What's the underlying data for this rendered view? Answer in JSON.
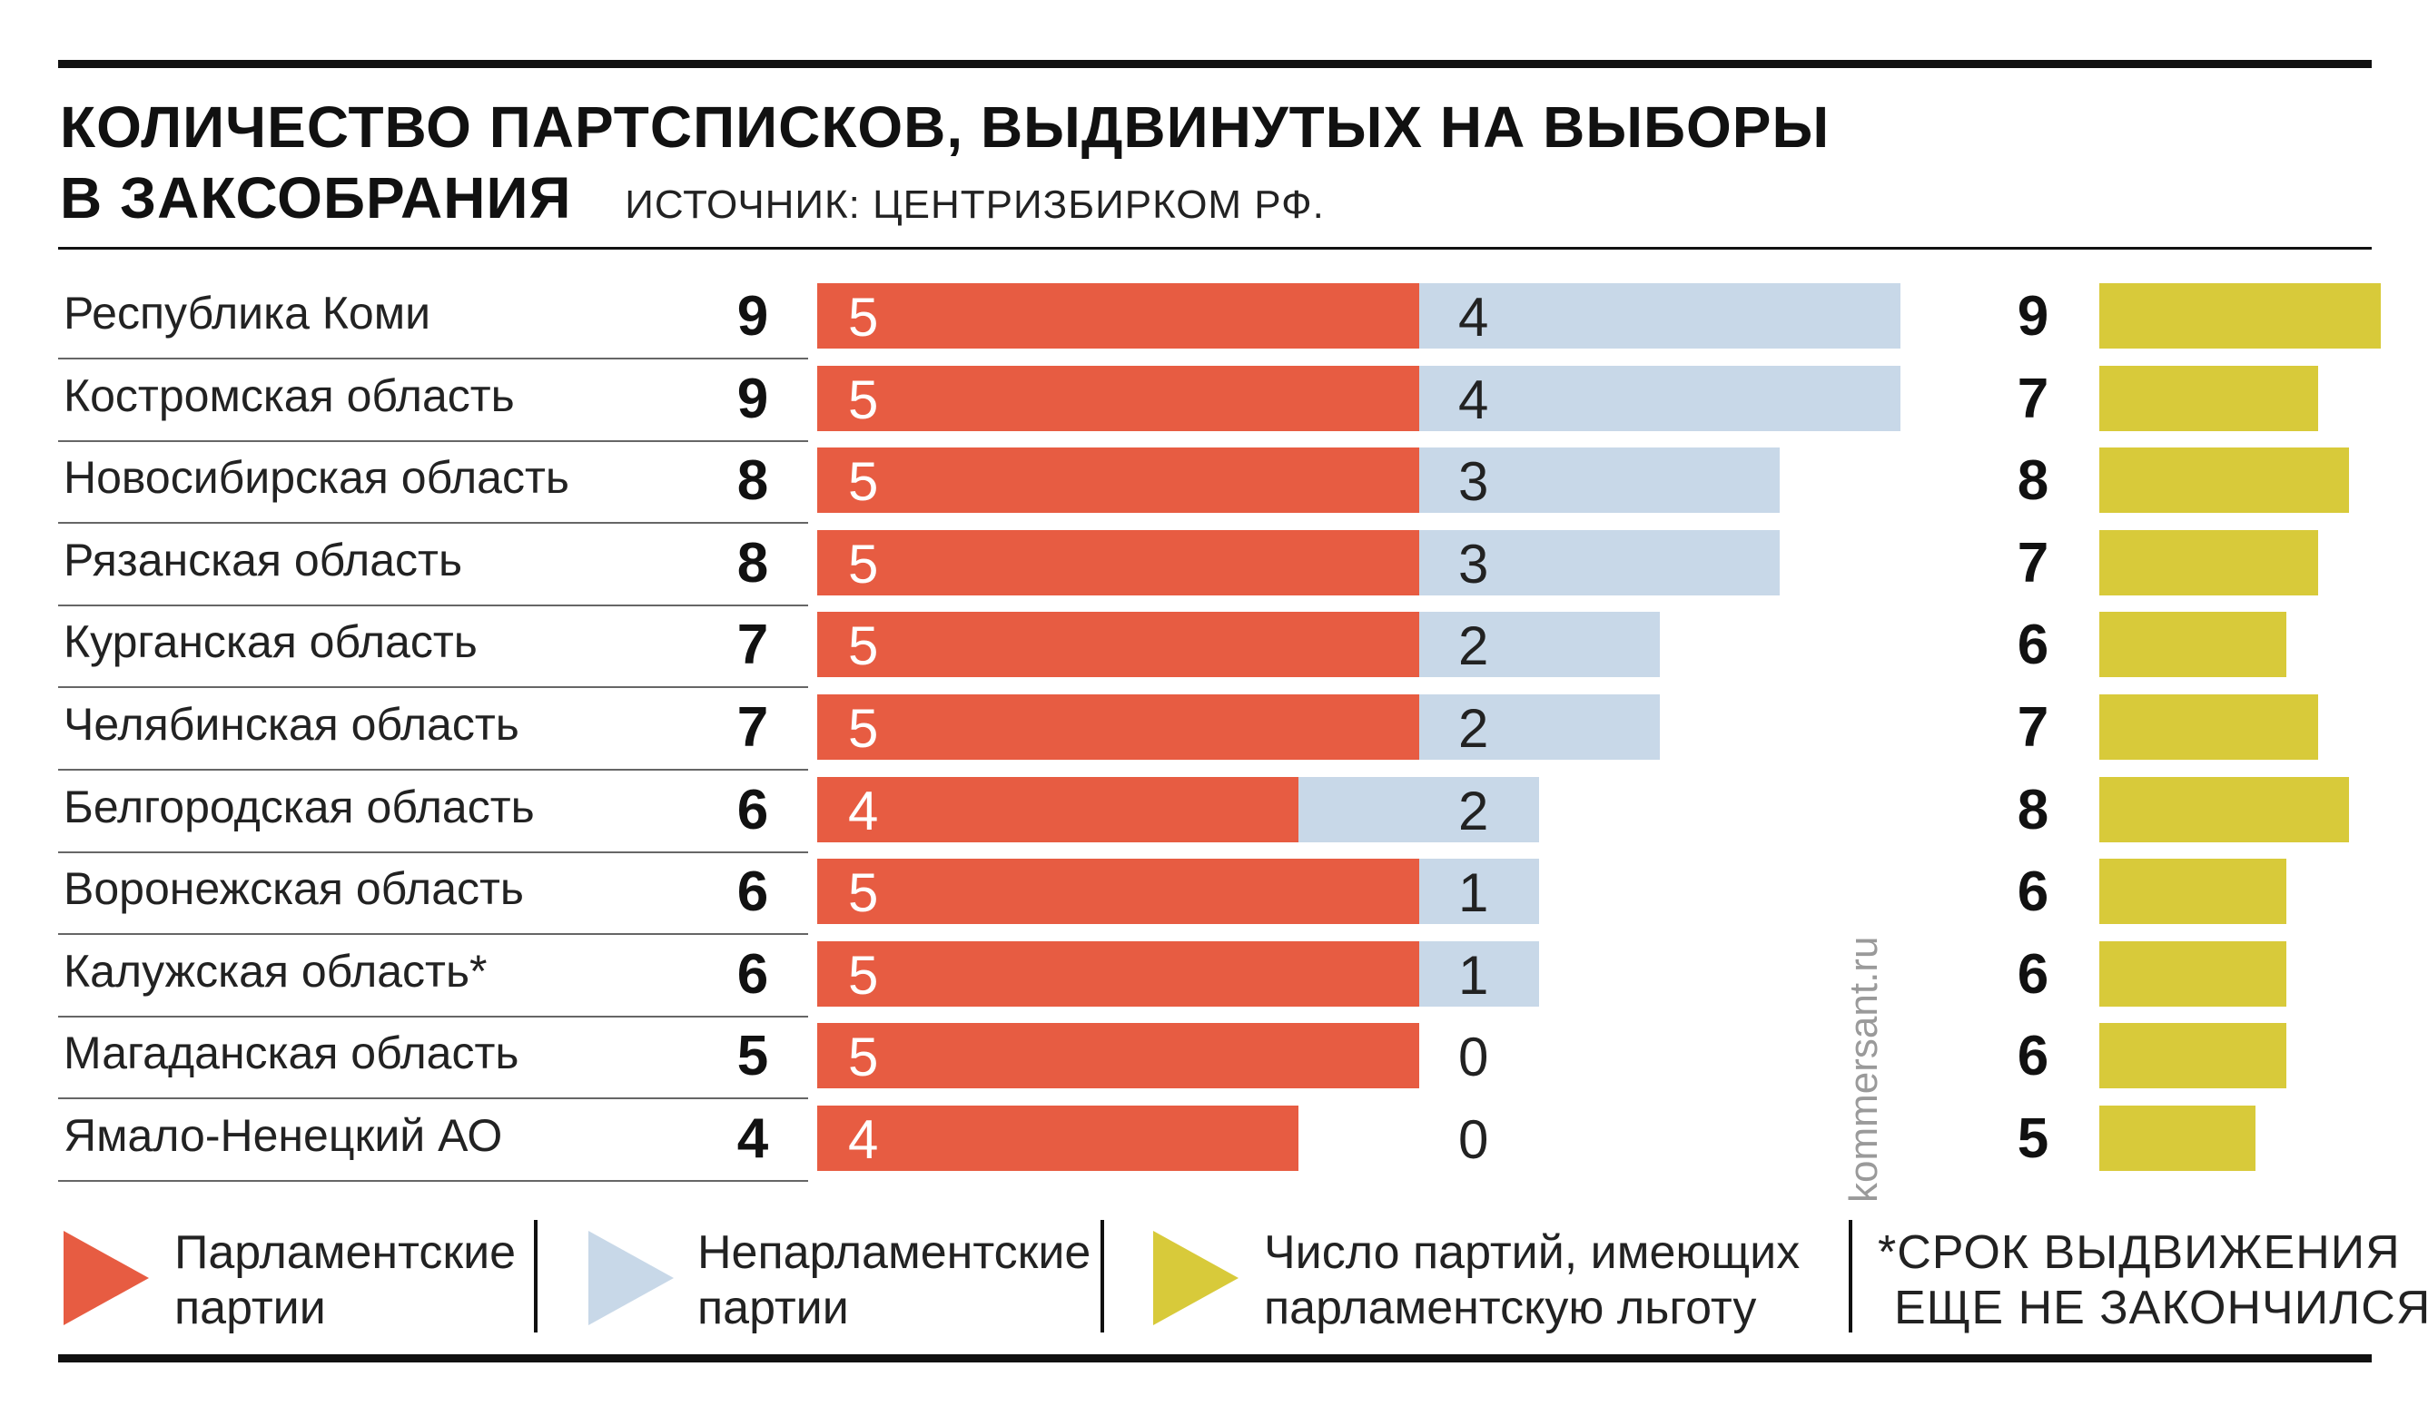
{
  "header": {
    "title_line1": "КОЛИЧЕСТВО ПАРТСПИСКОВ, ВЫДВИНУТЫХ НА ВЫБОРЫ",
    "title_line2": "В ЗАКСОБРАНИЯ",
    "source": "ИСТОЧНИК: ЦЕНТРИЗБИРКОМ РФ."
  },
  "watermark": "kommersant.ru",
  "colors": {
    "parliamentary": "#e75c42",
    "non_parliamentary": "#c8d8e8",
    "privileged": "#d8ca3a"
  },
  "legend": [
    {
      "name": "parliamentary",
      "line1": "Парламентские",
      "line2": "партии"
    },
    {
      "name": "non_parliamentary",
      "line1": "Непарламентские",
      "line2": "партии"
    },
    {
      "name": "privileged",
      "line1": "Число партий, имеющих",
      "line2": "парламентскую льготу"
    }
  ],
  "footnote": {
    "line1": "*СРОК ВЫДВИЖЕНИЯ",
    "line2": "ЕЩЕ НЕ ЗАКОНЧИЛСЯ."
  },
  "chart_data": {
    "type": "bar",
    "stacked": true,
    "orientation": "horizontal",
    "title": "КОЛИЧЕСТВО ПАРТСПИСКОВ, ВЫДВИНУТЫХ НА ВЫБОРЫ В ЗАКСОБРАНИЯ",
    "categories": [
      "Республика Коми",
      "Костромская область",
      "Новосибирская область",
      "Рязанская область",
      "Курганская область",
      "Челябинская область",
      "Белгородская область",
      "Воронежская область",
      "Калужская область*",
      "Магаданская область",
      "Ямало-Ненецкий АО"
    ],
    "totals": [
      9,
      9,
      8,
      8,
      7,
      7,
      6,
      6,
      6,
      5,
      4
    ],
    "series": [
      {
        "name": "Парламентские партии",
        "values": [
          5,
          5,
          5,
          5,
          5,
          5,
          4,
          5,
          5,
          5,
          4
        ]
      },
      {
        "name": "Непарламентские партии",
        "values": [
          4,
          4,
          3,
          3,
          2,
          2,
          2,
          1,
          1,
          0,
          0
        ]
      }
    ],
    "privileged_series": {
      "name": "Число партий, имеющих парламентскую льготу",
      "values": [
        9,
        7,
        8,
        7,
        6,
        7,
        8,
        6,
        6,
        6,
        5
      ]
    },
    "xlim": [
      0,
      9
    ],
    "privileged_xlim": [
      0,
      9
    ],
    "grid": false,
    "legend_position": "bottom"
  }
}
